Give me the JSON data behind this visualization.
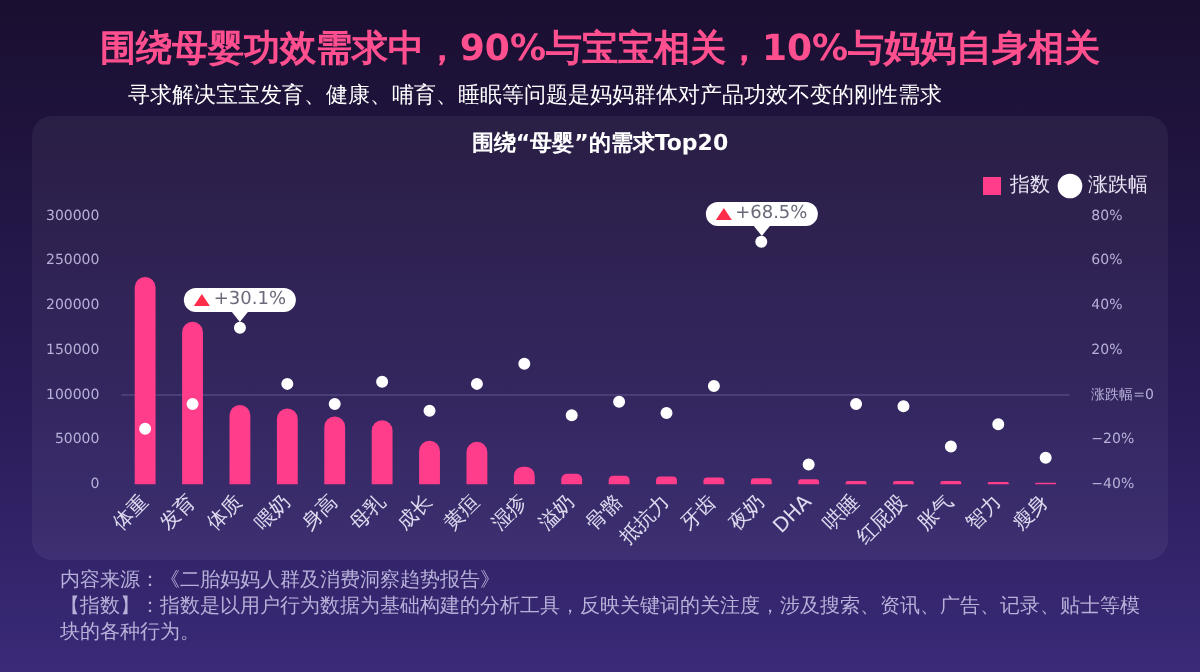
{
  "chart_data": {
    "type": "bar",
    "title": "围绕母婴功效需求中，90%与宝宝相关，10%与妈妈自身相关",
    "subtitle": "寻求解决宝宝发育、健康、哺育、睡眠等问题是妈妈群体对产品功效不变的刚性需求",
    "categories": [
      "体重",
      "发育",
      "体质",
      "喂奶",
      "身高",
      "母乳",
      "成长",
      "黄疸",
      "湿疹",
      "溢奶",
      "骨骼",
      "抵抗力",
      "牙齿",
      "夜奶",
      "DHA",
      "哄睡",
      "红屁股",
      "胀气",
      "智力",
      "瘦身"
    ],
    "series": [
      {
        "name": "指数",
        "color": "#ff3d8b",
        "values": [
          232000,
          182000,
          89000,
          85000,
          76000,
          72000,
          49000,
          48000,
          20000,
          12000,
          10000,
          9000,
          8000,
          7000,
          6000,
          4000,
          4000,
          4000,
          3000,
          2000
        ]
      },
      {
        "name": "涨跌幅",
        "type": "scatter",
        "axis": "y2",
        "color": "#ffffff",
        "x": [
          "体重",
          "发育",
          "体质",
          "喂奶",
          "身高",
          "母乳",
          "成长",
          "黄疸",
          "湿疹",
          "溢奶",
          "骨骼",
          "抵抗力",
          "牙齿",
          "夜奶",
          "DHA",
          "哄睡",
          "红屁股",
          "胀气",
          "智力",
          "瘦身"
        ],
        "values": [
          -15,
          -4,
          30.1,
          5,
          -4,
          6,
          -7,
          5,
          14,
          -9,
          -3,
          -8,
          4,
          68.5,
          -31,
          -4,
          -5,
          -23,
          -13,
          -28
        ],
        "value_labels": [
          null,
          null,
          "+30.1%",
          null,
          null,
          null,
          null,
          null,
          null,
          null,
          null,
          null,
          null,
          "+68.5%",
          null,
          null,
          null,
          null,
          null,
          null
        ]
      }
    ],
    "ylim": [
      0,
      300000
    ],
    "yticks": [
      0,
      50000,
      100000,
      150000,
      200000,
      250000,
      300000
    ],
    "y2lim": [
      -40,
      80
    ],
    "y2ticks": [
      {
        "value": -40,
        "label": "−40%"
      },
      {
        "value": -20,
        "label": "−20%"
      },
      {
        "value": 0,
        "label": "涨跌幅=0"
      },
      {
        "value": 20,
        "label": "20%"
      },
      {
        "value": 40,
        "label": "40%"
      },
      {
        "value": 60,
        "label": "60%"
      },
      {
        "value": 80,
        "label": "80%"
      }
    ],
    "ref_lines": [
      {
        "axis": "y2",
        "value": 0,
        "color": "#4a3d78"
      }
    ],
    "legend": "top right",
    "marker": "circle",
    "annotations": [
      "围绕“母婴”的需求Top20",
      "内容来源：《二胎妈妈人群及消费洞察趋势报告》",
      "【指数】：指数是以用户行为数据为基础构建的分析工具，反映关键词的关注度，涉及搜索、资讯、广告、记录、贴士等模块的各种行为。"
    ]
  }
}
